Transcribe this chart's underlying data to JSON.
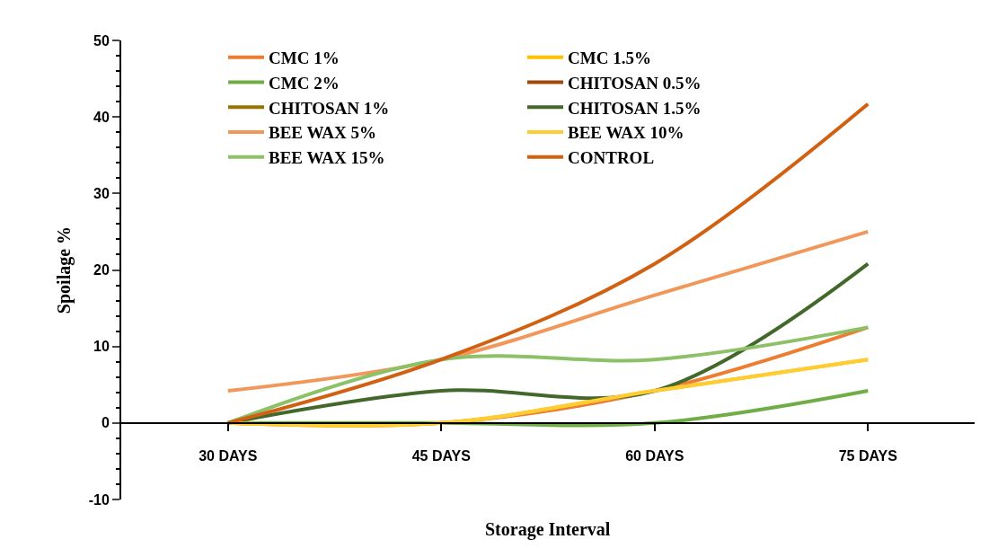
{
  "chart_data": {
    "type": "line",
    "xlabel": "Storage Interval",
    "ylabel": "Spoilage %",
    "categories": [
      "30 DAYS",
      "45 DAYS",
      "60 DAYS",
      "75 DAYS"
    ],
    "ylim": [
      -10,
      50
    ],
    "yticks": [
      -10,
      0,
      10,
      20,
      30,
      40,
      50
    ],
    "legend": "top",
    "marker": "none",
    "line_style": "solid",
    "series": [
      {
        "name": "CMC 1%",
        "color": "#ed7d31",
        "values": [
          0,
          0,
          4.2,
          12.5
        ]
      },
      {
        "name": "CMC 1.5%",
        "color": "#ffc000",
        "values": [
          0,
          0,
          4.2,
          8.3
        ]
      },
      {
        "name": "CMC 2%",
        "color": "#70ad47",
        "values": [
          0,
          0,
          0,
          4.2
        ]
      },
      {
        "name": "CHITOSAN 0.5%",
        "color": "#9e480e",
        "values": [
          null,
          null,
          null,
          null
        ]
      },
      {
        "name": "CHITOSAN 1%",
        "color": "#997300",
        "values": [
          null,
          null,
          null,
          null
        ]
      },
      {
        "name": "CHITOSAN 1.5%",
        "color": "#43682b",
        "values": [
          0,
          4.2,
          4.2,
          20.8
        ]
      },
      {
        "name": "BEE WAX 5%",
        "color": "#f1975a",
        "values": [
          4.2,
          8.3,
          16.7,
          25
        ]
      },
      {
        "name": "BEE WAX 10%",
        "color": "#ffcd33",
        "values": [
          0,
          0,
          4.2,
          8.3
        ]
      },
      {
        "name": "BEE WAX 15%",
        "color": "#8cc168",
        "values": [
          0,
          8.3,
          8.3,
          12.5
        ]
      },
      {
        "name": "CONTROL",
        "color": "#d26012",
        "values": [
          0,
          8.3,
          20.8,
          41.7
        ]
      }
    ]
  }
}
